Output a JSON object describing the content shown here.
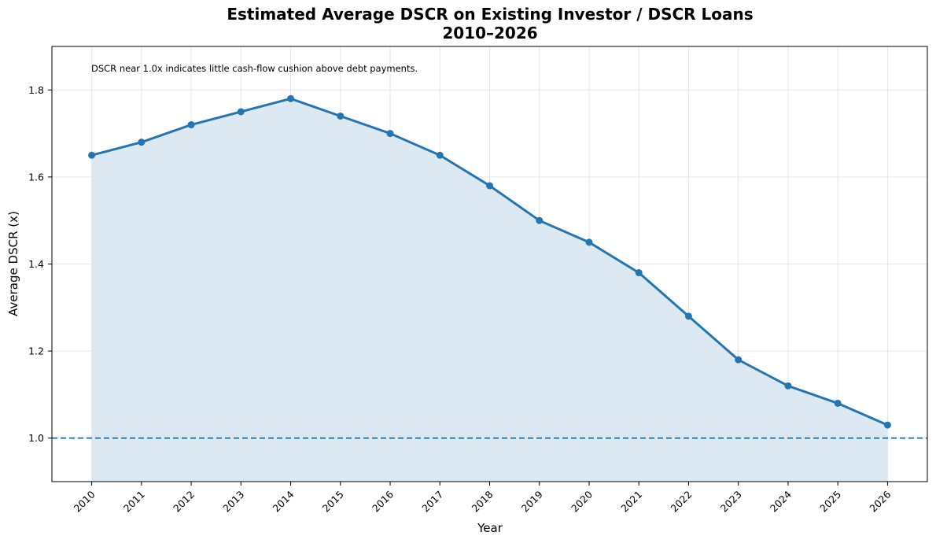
{
  "chart_data": {
    "type": "line",
    "title_line1": "Estimated Average DSCR on Existing Investor / DSCR Loans",
    "title_line2": "2010–2026",
    "xlabel": "Year",
    "ylabel": "Average DSCR (x)",
    "x": [
      2010,
      2011,
      2012,
      2013,
      2014,
      2015,
      2016,
      2017,
      2018,
      2019,
      2020,
      2021,
      2022,
      2023,
      2024,
      2025,
      2026
    ],
    "x_tick_labels": [
      "2010",
      "2011",
      "2012",
      "2013",
      "2014",
      "2015",
      "2016",
      "2017",
      "2018",
      "2019",
      "2020",
      "2021",
      "2022",
      "2023",
      "2024",
      "2025",
      "2026"
    ],
    "series": [
      {
        "values": [
          1.65,
          1.68,
          1.72,
          1.75,
          1.78,
          1.74,
          1.7,
          1.65,
          1.58,
          1.5,
          1.45,
          1.38,
          1.28,
          1.18,
          1.12,
          1.08,
          1.03
        ]
      }
    ],
    "ylim": [
      0.9,
      1.9
    ],
    "y_ticks": [
      1.0,
      1.2,
      1.4,
      1.6,
      1.8
    ],
    "y_tick_labels": [
      "1.0",
      "1.2",
      "1.4",
      "1.6",
      "1.8"
    ],
    "reference_line": {
      "y": 1.0,
      "style": "dashed"
    },
    "annotation": "DSCR near 1.0x indicates little cash-flow cushion above debt payments.",
    "area_fill": true,
    "grid": true,
    "line_color": "#2576b0",
    "fill_color": "#dce9f3",
    "grid_color": "#e6e6e6"
  }
}
